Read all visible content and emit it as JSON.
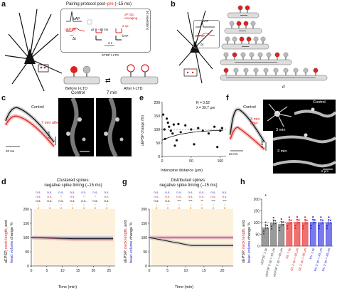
{
  "panels": {
    "a": {
      "letter": "a",
      "title_prefix": "Pairing protocol post–",
      "title_pre": "pre",
      "title_suffix": " (–15 ms)",
      "bap_label": "bAP",
      "uepsp_label": "uEPSP",
      "delta_t": "Δt",
      "delta_t_value": "Δt = –15 ms",
      "glu_label": "2P Glu uncaging",
      "sp_label": "2 sp",
      "bap_label2": "bAP",
      "time_label": "2 s",
      "repetitions": "40 repetitions",
      "stdp_label": "STDP t-LTD",
      "before_label": "Before t-LTD",
      "after_label": "After t-LTD"
    },
    "b": {
      "letter": "b",
      "bap_label": "bAP",
      "uepsp_label": "uEPSP",
      "delta_t": "Δt",
      "d_label": "d"
    },
    "c": {
      "letter": "c",
      "control_label": "Control",
      "after_label": "7 min after",
      "scale_time": "20 ms",
      "scale_volt": "2 mV",
      "img_control": "Control",
      "img_7min": "7 min"
    },
    "e": {
      "letter": "e",
      "ylabel": "uEPSP change (%)",
      "xlabel": "Interspine distance (μm)",
      "r_text": "R = 0.52",
      "lambda_text": "λ = 39.7 μm",
      "yticks": [
        "200",
        "150",
        "100",
        "50",
        "0"
      ],
      "xticks": [
        "0",
        "50",
        "100"
      ]
    },
    "f": {
      "letter": "f",
      "control_label": "Control",
      "after_label": "3 min after",
      "scale_time": "20 ms",
      "scale_volt": "2 mV",
      "img_control": "Control",
      "img_3min": "3 min",
      "img_3min_b": "3 min",
      "scale_bar": "5 μm"
    },
    "d": {
      "letter": "d",
      "title1": "Clustered spines:",
      "title2": "negative spike timing (–15 ms)",
      "ylabel_a": "uEPSP",
      "ylabel_b": ", neck length",
      "ylabel_c": ", and",
      "ylabel_d": "head volume",
      "ylabel_e": " change %",
      "xlabel": "Time (min)",
      "yticks": [
        "200",
        "150",
        "100",
        "50",
        "0"
      ],
      "xticks": [
        "0",
        "5",
        "10",
        "15",
        "20",
        "25"
      ],
      "sig_blue": [
        "n.s.",
        "n.s.",
        "n.s.",
        "n.s.",
        "n.s.",
        "n.s.",
        "n.s."
      ],
      "sig_red": [
        "n.s.",
        "n.s.",
        "*",
        "n.s.",
        "*",
        "*",
        "n.s."
      ],
      "sig_black": [
        "n.s.",
        "n.s.",
        "n.s.",
        "n.s.",
        "n.s.",
        "n.s.",
        "n.s."
      ]
    },
    "g": {
      "letter": "g",
      "title1": "Distributed spines:",
      "title2": "negative spike timing (–15 ms)",
      "xlabel": "Time (min)",
      "yticks": [
        "200",
        "150",
        "100",
        "50",
        "0"
      ],
      "xticks": [
        "0",
        "5",
        "10",
        "15",
        "20"
      ],
      "sig_blue": [
        "n.s.",
        "n.s.",
        "n.s.",
        "n.s.",
        "n.s.",
        "n.s.",
        "n.s."
      ],
      "sig_red": [
        "n.s.",
        "n.s.",
        "n.s.",
        "n.s.",
        "n.s.",
        "n.s.",
        "n.s."
      ],
      "sig_black": [
        "n.s.",
        "n.s.",
        "***",
        "***",
        "**",
        "***",
        "***"
      ]
    },
    "h": {
      "letter": "h",
      "yticks": [
        "200",
        "150",
        "100",
        "50",
        "0"
      ],
      "categories": [
        "uEPSP 1 sp",
        "uEPSP 2 sp < 40 μm",
        "uEPSP 2 sp > 40 μm",
        "NL 1 sp",
        "NL 2 sp < 40 μm",
        "NL 2 sp > 40 μm",
        "HV 1 sp",
        "HV 2 sp < 40 μm",
        "HV 2 sp > 40 μm"
      ],
      "values": [
        78,
        98,
        92,
        100,
        101,
        100,
        101,
        100,
        100
      ],
      "colors": [
        "#444444",
        "#444444",
        "#444444",
        "#e02020",
        "#e02020",
        "#e02020",
        "#2a2ad0",
        "#2a2ad0",
        "#2a2ad0"
      ],
      "bar_colors": [
        "#9a9a9a",
        "#9a9a9a",
        "#9a9a9a",
        "#f07070",
        "#f07070",
        "#f07070",
        "#7a7aee",
        "#7a7aee",
        "#7a7aee"
      ],
      "sig": [
        "*",
        "",
        "",
        "",
        "",
        "",
        "",
        "",
        ""
      ]
    }
  },
  "chart_data": [
    {
      "type": "scatter",
      "title": "",
      "xlabel": "Interspine distance (μm)",
      "ylabel": "uEPSP change (%)",
      "xlim": [
        0,
        110
      ],
      "ylim": [
        0,
        200
      ],
      "x": [
        2,
        4,
        5,
        8,
        10,
        12,
        15,
        18,
        20,
        22,
        25,
        28,
        32,
        40,
        50,
        55,
        62,
        70,
        80,
        90,
        95,
        100,
        103
      ],
      "y": [
        155,
        100,
        65,
        140,
        125,
        110,
        95,
        85,
        118,
        40,
        60,
        120,
        90,
        115,
        100,
        45,
        105,
        95,
        85,
        110,
        35,
        95,
        105
      ],
      "annotations": [
        "R = 0.52",
        "λ = 39.7 μm"
      ]
    },
    {
      "type": "bar",
      "title": "",
      "ylabel": "uEPSP, neck length, and head volume change %",
      "categories": [
        "uEPSP 1 sp",
        "uEPSP 2 sp < 40 μm",
        "uEPSP 2 sp > 40 μm",
        "NL 1 sp",
        "NL 2 sp < 40 μm",
        "NL 2 sp > 40 μm",
        "HV 1 sp",
        "HV 2 sp < 40 μm",
        "HV 2 sp > 40 μm"
      ],
      "values": [
        78,
        98,
        92,
        100,
        101,
        100,
        101,
        100,
        100
      ],
      "ylim": [
        0,
        200
      ]
    },
    {
      "type": "line",
      "title": "",
      "xlabel": "Time (min)",
      "ylim": [
        0,
        200
      ],
      "series": [
        {
          "x": [
            0,
            25
          ],
          "values": [
            100,
            100
          ]
        },
        {
          "x": [
            0,
            25
          ],
          "values": [
            100,
            93
          ]
        },
        {
          "x": [
            0,
            25
          ],
          "values": [
            100,
            96
          ]
        }
      ]
    },
    {
      "type": "line",
      "title": "",
      "xlabel": "Time (min)",
      "ylim": [
        0,
        200
      ],
      "series": [
        {
          "x": [
            0,
            22
          ],
          "values": [
            100,
            100
          ]
        },
        {
          "x": [
            0,
            22
          ],
          "values": [
            100,
            100
          ]
        },
        {
          "x": [
            0,
            22
          ],
          "values": [
            100,
            72
          ]
        }
      ]
    }
  ]
}
